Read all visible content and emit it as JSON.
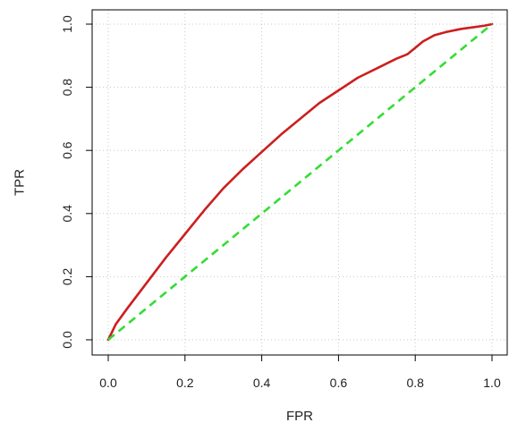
{
  "chart_data": {
    "type": "line",
    "xlabel": "FPR",
    "ylabel": "TPR",
    "xlim": [
      0,
      1
    ],
    "ylim": [
      0,
      1
    ],
    "grid": true,
    "x_ticks": [
      "0.0",
      "0.2",
      "0.4",
      "0.6",
      "0.8",
      "1.0"
    ],
    "y_ticks": [
      "0.0",
      "0.2",
      "0.4",
      "0.6",
      "0.8",
      "1.0"
    ],
    "series": [
      {
        "color": "#cc1f1f",
        "line_style": "solid",
        "x": [
          0.0,
          0.02,
          0.05,
          0.1,
          0.15,
          0.2,
          0.25,
          0.3,
          0.35,
          0.4,
          0.45,
          0.5,
          0.55,
          0.6,
          0.65,
          0.7,
          0.75,
          0.78,
          0.8,
          0.82,
          0.85,
          0.88,
          0.92,
          0.95,
          0.98,
          1.0
        ],
        "y": [
          0.0,
          0.05,
          0.1,
          0.18,
          0.26,
          0.335,
          0.41,
          0.48,
          0.54,
          0.595,
          0.65,
          0.7,
          0.75,
          0.79,
          0.83,
          0.86,
          0.89,
          0.905,
          0.925,
          0.945,
          0.965,
          0.975,
          0.985,
          0.99,
          0.995,
          1.0
        ]
      },
      {
        "color": "#33dd33",
        "line_style": "dashed",
        "x": [
          0.0,
          1.0
        ],
        "y": [
          0.0,
          1.0
        ]
      }
    ]
  }
}
